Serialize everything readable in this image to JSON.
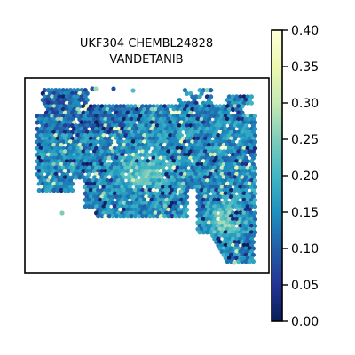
{
  "chart_data": {
    "type": "scatter",
    "title_lines": [
      "UKF304 CHEMBL24828",
      "VANDETANIB"
    ],
    "xlabel": "",
    "ylabel": "",
    "marker": "hexagon",
    "grid": false,
    "axis_ticks": false,
    "colormap": "YlGnBu_r",
    "colormap_stops": [
      "#081d58",
      "#253494",
      "#225ea8",
      "#1d91c0",
      "#41b6c4",
      "#7fcdbb",
      "#c7e9b4",
      "#edf8b1",
      "#ffffd9"
    ],
    "colorbar": {
      "range": [
        0.0,
        0.4
      ],
      "ticks": [
        0.0,
        0.05,
        0.1,
        0.15,
        0.2,
        0.25,
        0.3,
        0.35,
        0.4
      ],
      "tick_labels": [
        "0.00",
        "0.05",
        "0.10",
        "0.15",
        "0.20",
        "0.25",
        "0.30",
        "0.35",
        "0.40"
      ],
      "placement": "right"
    },
    "tissue_outline": {
      "description_units": "relative spot coordinates, not pixel layout",
      "x_range": [
        0,
        100
      ],
      "y_range": [
        0,
        100
      ]
    }
  }
}
